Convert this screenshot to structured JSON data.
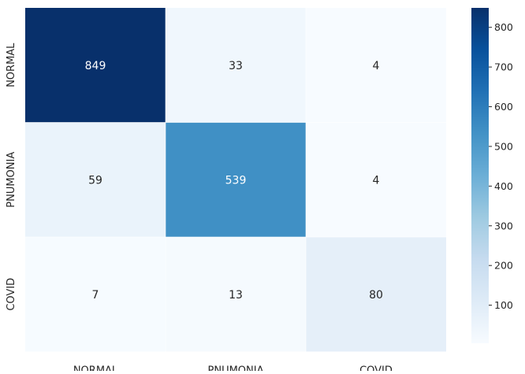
{
  "chart_data": {
    "type": "heatmap",
    "title": "",
    "xlabel": "",
    "ylabel": "",
    "x_categories": [
      "NORMAL",
      "PNUMONIA",
      "COVID"
    ],
    "y_categories": [
      "NORMAL",
      "PNUMONIA",
      "COVID"
    ],
    "values": [
      [
        849,
        33,
        4
      ],
      [
        59,
        539,
        4
      ],
      [
        7,
        13,
        80
      ]
    ],
    "colormap": "Blues",
    "color_range": [
      4,
      849
    ],
    "colorbar_ticks": [
      100,
      200,
      300,
      400,
      500,
      600,
      700,
      800
    ],
    "annotations": true,
    "cell_dividers": "white"
  }
}
